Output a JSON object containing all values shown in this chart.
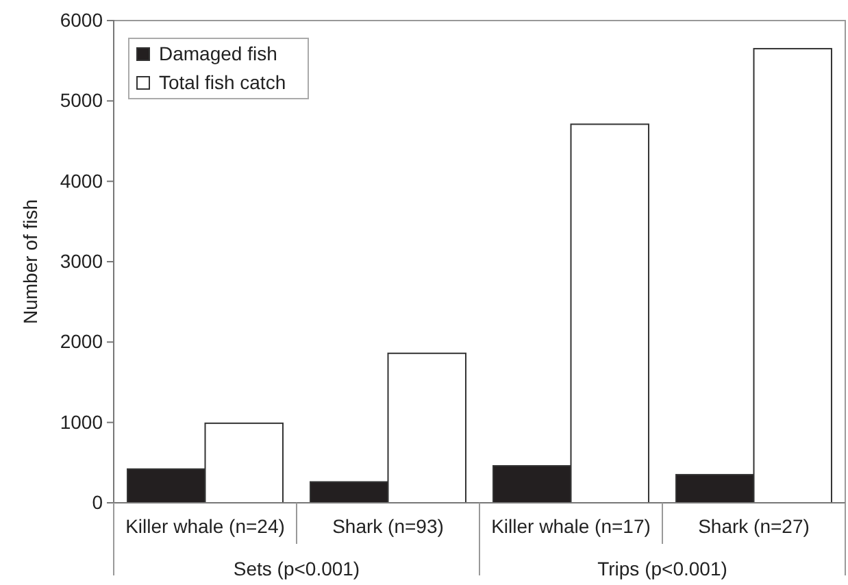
{
  "chart_data": {
    "type": "bar",
    "ylabel": "Number of fish",
    "categories": [
      "Killer whale (n=24)",
      "Shark (n=93)",
      "Killer whale (n=17)",
      "Shark (n=27)"
    ],
    "series": [
      {
        "name": "Damaged fish",
        "color": "#231f20",
        "values": [
          420,
          260,
          460,
          350
        ]
      },
      {
        "name": "Total fish catch",
        "color": "#ffffff",
        "values": [
          990,
          1860,
          4710,
          5650
        ]
      }
    ],
    "annotations": [
      "Sets (p<0.001)",
      "Trips (p<0.001)"
    ],
    "ylim": [
      0,
      6000
    ],
    "yticks": [
      0,
      1000,
      2000,
      3000,
      4000,
      5000,
      6000
    ],
    "grid": false,
    "legend": "top left"
  }
}
